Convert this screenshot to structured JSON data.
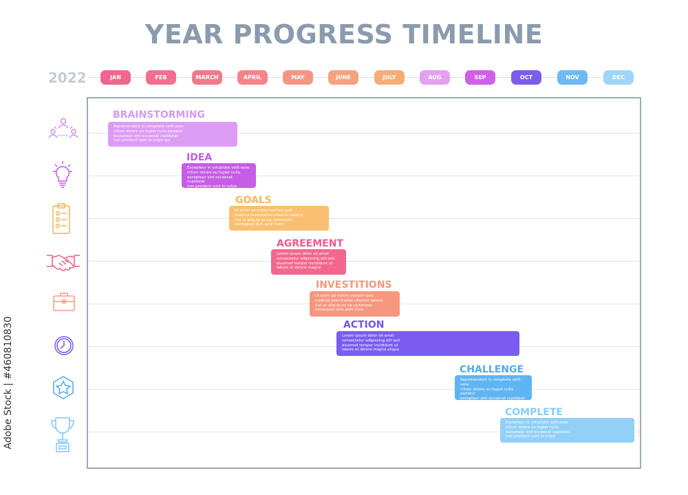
{
  "title": "YEAR PROGRESS TIMELINE",
  "year": "2022",
  "months": [
    {
      "label": "JAN",
      "color": "#f0668f"
    },
    {
      "label": "FEB",
      "color": "#f2708f"
    },
    {
      "label": "MARCH",
      "color": "#f2798c"
    },
    {
      "label": "APRIL",
      "color": "#f58488"
    },
    {
      "label": "MAY",
      "color": "#f59684"
    },
    {
      "label": "JUNE",
      "color": "#f5a37e"
    },
    {
      "label": "JULY",
      "color": "#f5ad7a"
    },
    {
      "label": "AUG",
      "color": "#e3a1f0"
    },
    {
      "label": "SEP",
      "color": "#d160e8"
    },
    {
      "label": "OCT",
      "color": "#7b5cf0"
    },
    {
      "label": "NOV",
      "color": "#6fb9f5"
    },
    {
      "label": "DEC",
      "color": "#9fd6f8"
    }
  ],
  "phases": [
    {
      "name": "BRAINSTORMING",
      "icon": "team-network-icon",
      "color": "#dc9cf3",
      "text": "Reprehenderit in voluptate velit esse\ncillum dolore eu fugiat nulla pariatur\nexcepteur sint occaecat cupidatat\nnon proident sunt in culpa qui"
    },
    {
      "name": "IDEA",
      "icon": "lightbulb-icon",
      "color": "#c55ee5",
      "text": "Excepteur in voluptate velit esse\ncillum dolore eu fugiat nulla\nexcepteur sint occaecat cupidatat\nnon proident sunt in culpa"
    },
    {
      "name": "GOALS",
      "icon": "checklist-clipboard-icon",
      "color": "#f9c071",
      "text": "Ut enim ad minim veniam quis\nnostrud exercitation ullamco laboris\nnisi ut aliquip ex ea commodo\nconsequat duis aute irure"
    },
    {
      "name": "AGREEMENT",
      "icon": "handshake-icon",
      "color": "#f3678f",
      "text": "Lorem ipsum dolor sit amet\nconsectetur adipiscing elit sed\neiusmod tempor incididunt ut\nlabore et dolore magna"
    },
    {
      "name": "INVESTITIONS",
      "icon": "briefcase-icon",
      "color": "#f7977e",
      "text": "Ut enim ad minim veniam quis\nnostrud exercitation ullamco laboris\nnisi ut aliquip ex ea commodo\nconsequat duis aute irure"
    },
    {
      "name": "ACTION",
      "icon": "clock-icon",
      "color": "#7b5cf2",
      "text": "Lorem ipsum dolor sit amet\nconsectetur adipiscing elit sed\neiusmod tempor incididunt ut\nlabore et dolore magna aliqua"
    },
    {
      "name": "CHALLENGE",
      "icon": "star-hexagon-icon",
      "color": "#5fb4f3",
      "text": "Reprehenderit in voluptate velit esse\ncillum dolore eu fugiat nulla pariatur\nexcepteur sint occaecat cupidatat\nnon proident sunt in culpa"
    },
    {
      "name": "COMPLETE",
      "icon": "trophy-icon",
      "color": "#92d0f7",
      "text": "Excepteur in voluptate velit esse\ncillum dolore eu fugiat nulla\nexcepteur sint occaecat cupidatat\nnon proident sunt in culpa"
    }
  ],
  "stock_id": "Adobe Stock | #460810830"
}
